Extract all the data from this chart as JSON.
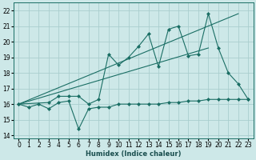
{
  "xlabel": "Humidex (Indice chaleur)",
  "bg_color": "#cde8e8",
  "grid_color": "#aacece",
  "line_color": "#1a6e64",
  "xlim": [
    -0.5,
    23.5
  ],
  "ylim": [
    13.8,
    22.5
  ],
  "yticks": [
    14,
    15,
    16,
    17,
    18,
    19,
    20,
    21,
    22
  ],
  "xticks": [
    0,
    1,
    2,
    3,
    4,
    5,
    6,
    7,
    8,
    9,
    10,
    11,
    12,
    13,
    14,
    15,
    16,
    17,
    18,
    19,
    20,
    21,
    22,
    23
  ],
  "series_flat_x": [
    0,
    1,
    2,
    3,
    4,
    5,
    6,
    7,
    8,
    9,
    10,
    11,
    12,
    13,
    14,
    15,
    16,
    17,
    18,
    19,
    20,
    21,
    22,
    23
  ],
  "series_flat_y": [
    16.0,
    15.8,
    16.0,
    15.7,
    16.1,
    16.2,
    14.4,
    15.7,
    15.8,
    15.8,
    16.0,
    16.0,
    16.0,
    16.0,
    16.0,
    16.1,
    16.1,
    16.2,
    16.2,
    16.3,
    16.3,
    16.3,
    16.3,
    16.3
  ],
  "series_zigzag_x": [
    0,
    3,
    4,
    5,
    6,
    7,
    8,
    9,
    10,
    11,
    12,
    13,
    14,
    15,
    16,
    17,
    18,
    19,
    20,
    21,
    22,
    23
  ],
  "series_zigzag_y": [
    16.0,
    16.1,
    16.5,
    16.5,
    16.5,
    16.0,
    16.3,
    19.2,
    18.5,
    19.0,
    19.7,
    20.5,
    18.4,
    20.8,
    21.0,
    19.1,
    19.2,
    21.8,
    19.6,
    18.0,
    17.3,
    16.3
  ],
  "trend1_x": [
    0,
    22
  ],
  "trend1_y": [
    16.0,
    21.8
  ],
  "trend2_x": [
    0,
    19
  ],
  "trend2_y": [
    16.0,
    19.6
  ]
}
